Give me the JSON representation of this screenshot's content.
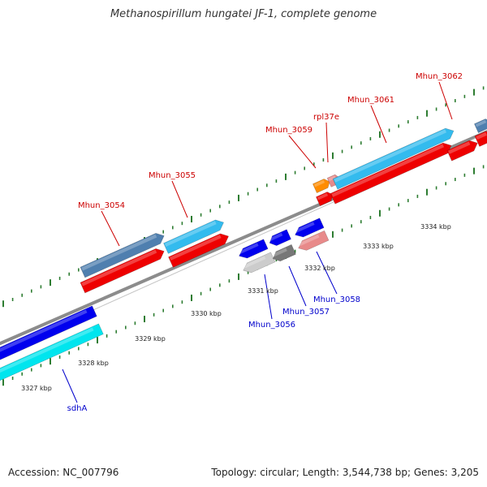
{
  "title": "Methanospirillum hungatei JF-1, complete genome",
  "footer": {
    "accession_label": "Accession:",
    "accession": "NC_007796",
    "topology_label": "Topology:",
    "topology": "circular",
    "length_label": "Length:",
    "length": "3,544,738 bp",
    "genes_label": "Genes:",
    "genes": "3,205"
  },
  "colors": {
    "background": "#ffffff",
    "backbone": "#8c8c8c",
    "tick": "#2e7d32",
    "forward_label": "#cc0000",
    "reverse_label": "#0000cc",
    "ruler_label": "#222222"
  },
  "ruler": {
    "unit": "kbp",
    "labels": [
      "3327 kbp",
      "3328 kbp",
      "3329 kbp",
      "3330 kbp",
      "3331 kbp",
      "3332 kbp",
      "3333 kbp",
      "3334 kbp"
    ]
  },
  "genes": {
    "forward": [
      {
        "name": "Mhun_3054",
        "color_cog": "#4f7faf",
        "color_strand": "#ee0000"
      },
      {
        "name": "Mhun_3055",
        "color_cog": "#33bbee",
        "color_strand": "#ee0000"
      },
      {
        "name": "Mhun_3059",
        "color_cog": "#ff8c00",
        "color_strand": "#ee0000"
      },
      {
        "name": "rpl37e",
        "color_cog": "#e88a8a",
        "color_strand": "#ee0000"
      },
      {
        "name": "Mhun_3061",
        "color_cog": "#33bbee",
        "color_strand": "#ee0000"
      },
      {
        "name": "Mhun_3062",
        "color_cog": "#4f7faf",
        "color_strand": "#ee0000"
      }
    ],
    "reverse": [
      {
        "name": "sdhA",
        "color_cog": "#00e5ee",
        "color_strand": "#0000ee"
      },
      {
        "name": "Mhun_3056",
        "color_cog": "#cccccc",
        "color_strand": "#0000ee"
      },
      {
        "name": "Mhun_3057",
        "color_cog": "#777777",
        "color_strand": "#0000ee"
      },
      {
        "name": "Mhun_3058",
        "color_cog": "#e88a8a",
        "color_strand": "#0000ee"
      }
    ]
  }
}
